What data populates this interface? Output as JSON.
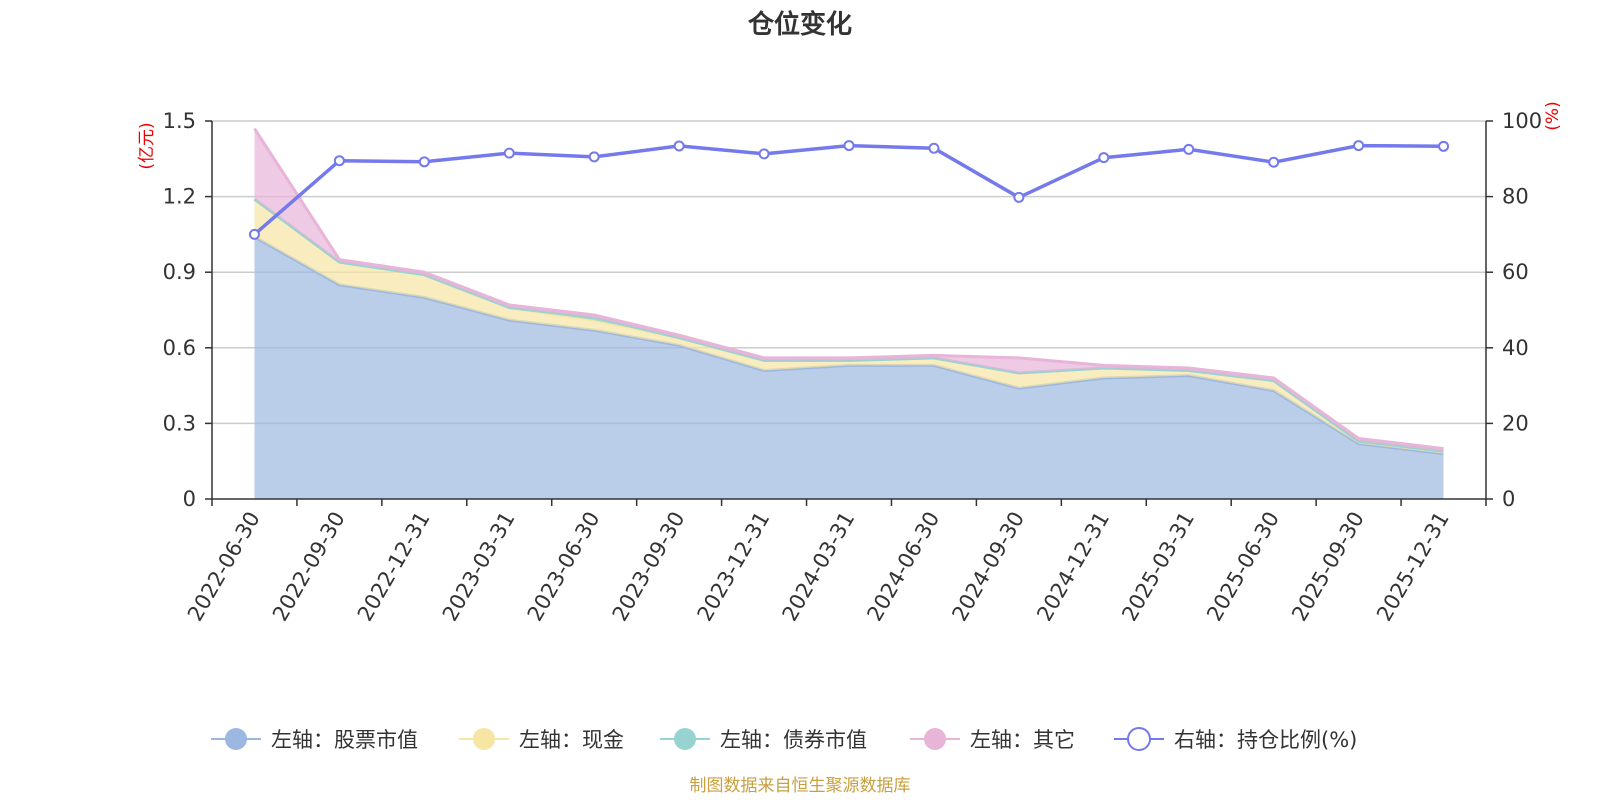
{
  "chart_data": {
    "type": "area",
    "title": "仓位变化",
    "left_axis": {
      "unit": "(亿元)",
      "min": 0,
      "max": 1.5,
      "ticks": [
        "0",
        "0.3",
        "0.6",
        "0.9",
        "1.2",
        "1.5"
      ]
    },
    "right_axis": {
      "unit": "(%)",
      "min": 0,
      "max": 100,
      "ticks": [
        "0",
        "20",
        "40",
        "60",
        "80",
        "100"
      ]
    },
    "categories": [
      "2022-06-30",
      "2022-09-30",
      "2022-12-31",
      "2023-03-31",
      "2023-06-30",
      "2023-09-30",
      "2023-12-31",
      "2024-03-31",
      "2024-06-30",
      "2024-09-30",
      "2024-12-31",
      "2025-03-31",
      "2025-06-30",
      "2025-09-30",
      "2025-12-31"
    ],
    "series": [
      {
        "name": "左轴：股票市值",
        "axis": "left",
        "kind": "stacked-area",
        "color": "#9db8e0",
        "values": [
          1.04,
          0.85,
          0.8,
          0.71,
          0.67,
          0.61,
          0.51,
          0.53,
          0.53,
          0.44,
          0.48,
          0.49,
          0.43,
          0.22,
          0.18
        ]
      },
      {
        "name": "左轴：现金",
        "axis": "left",
        "kind": "stacked-area",
        "color": "#f7e5a4",
        "values": [
          0.15,
          0.09,
          0.09,
          0.05,
          0.04,
          0.03,
          0.04,
          0.02,
          0.03,
          0.06,
          0.04,
          0.02,
          0.04,
          0.01,
          0.01
        ]
      },
      {
        "name": "左轴：债券市值",
        "axis": "left",
        "kind": "stacked-area",
        "color": "#96d3d1",
        "values": [
          0,
          0,
          0,
          0,
          0.01,
          0,
          0,
          0,
          0,
          0,
          0,
          0,
          0,
          0,
          0
        ]
      },
      {
        "name": "左轴：其它",
        "axis": "left",
        "kind": "stacked-area",
        "color": "#e8b4d8",
        "values": [
          0.28,
          0.01,
          0.01,
          0.01,
          0.01,
          0.01,
          0.01,
          0.01,
          0.01,
          0.06,
          0.01,
          0.01,
          0.01,
          0.01,
          0.01
        ]
      },
      {
        "name": "右轴：持仓比例(%)",
        "axis": "right",
        "kind": "line",
        "color": "#7479ec",
        "values": [
          70,
          89.5,
          89.2,
          91.5,
          90.5,
          93.4,
          91.3,
          93.5,
          92.8,
          79.8,
          90.3,
          92.5,
          89.1,
          93.5,
          93.3
        ]
      }
    ]
  },
  "source_note": "制图数据来自恒生聚源数据库"
}
